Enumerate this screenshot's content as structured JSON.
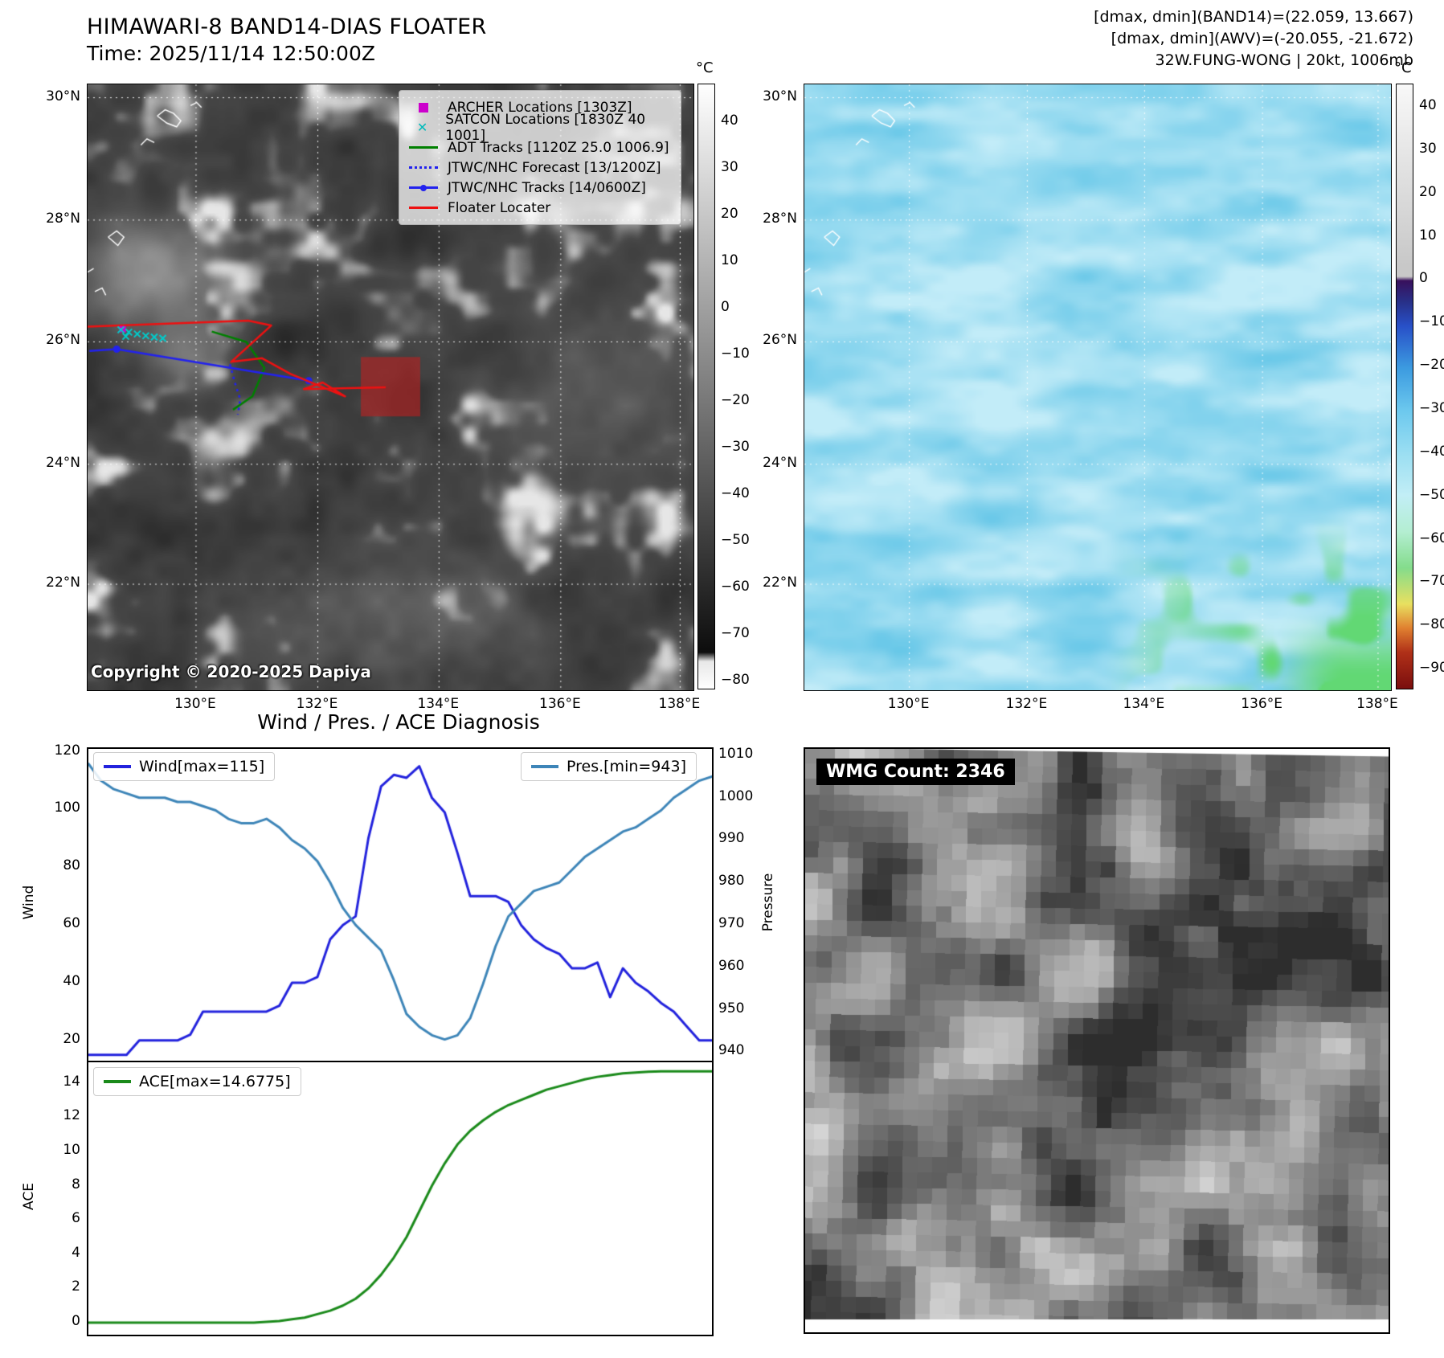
{
  "band14": {
    "title": "HIMAWARI-8 BAND14-DIAS FLOATER",
    "time_label": "Time: 2025/11/14 12:50:00Z",
    "copyright": "Copyright © 2020-2025 Dapiya",
    "lat_labels": [
      "30°N",
      "28°N",
      "26°N",
      "24°N",
      "22°N"
    ],
    "lon_labels": [
      "130°E",
      "132°E",
      "134°E",
      "136°E",
      "138°E"
    ],
    "colorbar": {
      "unit": "°C",
      "vmax": 48,
      "vmin": -82,
      "ticks": [
        40,
        30,
        20,
        10,
        0,
        -10,
        -20,
        -30,
        -40,
        -50,
        -60,
        -70,
        -80
      ],
      "stops": [
        [
          0,
          "#ffffff"
        ],
        [
          0.94,
          "#0d0d0d"
        ],
        [
          0.955,
          "#e8e8e8"
        ],
        [
          1,
          "#ffffff"
        ]
      ]
    },
    "legend": [
      {
        "label": "ARCHER Locations [1303Z]",
        "marker": "square",
        "color": "#cc00cc"
      },
      {
        "label": "SATCON Locations [1830Z 40 1001]",
        "marker": "x",
        "color": "#00bbbb"
      },
      {
        "label": "ADT Tracks [1120Z 25.0 1006.9]",
        "marker": "line",
        "color": "#008000"
      },
      {
        "label": "JTWC/NHC Forecast [13/1200Z]",
        "marker": "dotted",
        "color": "#2222ee"
      },
      {
        "label": "JTWC/NHC Tracks [14/0600Z]",
        "marker": "line-dot",
        "color": "#2222ee"
      },
      {
        "label": "Floater Locater",
        "marker": "line",
        "color": "#ee1111"
      }
    ]
  },
  "awv": {
    "header_lines": [
      "[dmax, dmin](BAND14)=(22.059, 13.667)",
      "[dmax, dmin](AWV)=(-20.055, -21.672)",
      "32W.FUNG-WONG | 20kt, 1006mb"
    ],
    "lat_labels": [
      "30°N",
      "28°N",
      "26°N",
      "24°N",
      "22°N"
    ],
    "lon_labels": [
      "130°E",
      "132°E",
      "134°E",
      "136°E",
      "138°E"
    ],
    "colorbar": {
      "unit": "°C",
      "vmax": 45,
      "vmin": -95,
      "ticks": [
        40,
        30,
        20,
        10,
        0,
        -10,
        -20,
        -30,
        -40,
        -50,
        -60,
        -70,
        -80,
        -90
      ],
      "stops": [
        [
          0,
          "#f8f8f8"
        ],
        [
          0.3,
          "#c8c8c8"
        ],
        [
          0.318,
          "#c8c8c8"
        ],
        [
          0.325,
          "#38105c"
        ],
        [
          0.36,
          "#283088"
        ],
        [
          0.4,
          "#2850c8"
        ],
        [
          0.47,
          "#3c9be0"
        ],
        [
          0.54,
          "#6cc8ee"
        ],
        [
          0.61,
          "#9adef2"
        ],
        [
          0.68,
          "#c2eef6"
        ],
        [
          0.74,
          "#b4eed2"
        ],
        [
          0.8,
          "#84dc8c"
        ],
        [
          0.86,
          "#e8e060"
        ],
        [
          0.9,
          "#e08030"
        ],
        [
          0.94,
          "#b03018"
        ],
        [
          1,
          "#7a0e0e"
        ]
      ]
    }
  },
  "wmg": {
    "label": "WMG Count: 2346"
  },
  "chart_data": [
    {
      "type": "line",
      "title": "Wind / Pres. / ACE Diagnosis",
      "grid": false,
      "legend_position": "top-left and top-right",
      "x_range": [
        0,
        1
      ],
      "left_axis": {
        "label": "Wind",
        "ylim": [
          13,
          121
        ],
        "ticks": [
          20,
          40,
          60,
          80,
          100,
          120
        ]
      },
      "right_axis": {
        "label": "Pressure",
        "ylim": [
          938,
          1011.5
        ],
        "ticks": [
          940,
          950,
          960,
          970,
          980,
          990,
          1000,
          1010
        ]
      },
      "series": [
        {
          "name": "Wind[max=115]",
          "axis": "left",
          "color": "#2222dd",
          "values": [
            15,
            15,
            15,
            15,
            20,
            20,
            20,
            20,
            22,
            30,
            30,
            30,
            30,
            30,
            30,
            32,
            40,
            40,
            42,
            55,
            60,
            63,
            90,
            108,
            112,
            111,
            115,
            104,
            99,
            85,
            70,
            70,
            70,
            68,
            60,
            55,
            52,
            50,
            45,
            45,
            47,
            35,
            45,
            40,
            37,
            33,
            30,
            25,
            20,
            20
          ]
        },
        {
          "name": "Pres.[min=943]",
          "axis": "right",
          "color": "#3d85b8",
          "values": [
            1008,
            1004,
            1002,
            1001,
            1000,
            1000,
            1000,
            999,
            999,
            998,
            997,
            995,
            994,
            994,
            995,
            993,
            990,
            988,
            985,
            980,
            974,
            970,
            967,
            964,
            957,
            949,
            946,
            944,
            943,
            944,
            948,
            956,
            965,
            972,
            975,
            978,
            979,
            980,
            983,
            986,
            988,
            990,
            992,
            993,
            995,
            997,
            1000,
            1002,
            1004,
            1005
          ]
        }
      ]
    },
    {
      "type": "line",
      "title": "",
      "grid": false,
      "x_range": [
        0,
        1
      ],
      "left_axis": {
        "label": "ACE",
        "ylim": [
          -0.7,
          15.2
        ],
        "ticks": [
          0,
          2,
          4,
          6,
          8,
          10,
          12,
          14
        ]
      },
      "series": [
        {
          "name": "ACE[max=14.6775]",
          "axis": "left",
          "color": "#1a8a1a",
          "values": [
            0,
            0,
            0,
            0,
            0,
            0,
            0,
            0,
            0,
            0,
            0,
            0,
            0,
            0,
            0.05,
            0.1,
            0.2,
            0.3,
            0.5,
            0.7,
            1.0,
            1.4,
            2.0,
            2.8,
            3.8,
            5.0,
            6.5,
            8.0,
            9.3,
            10.4,
            11.2,
            11.8,
            12.3,
            12.7,
            13.0,
            13.3,
            13.6,
            13.8,
            14.0,
            14.2,
            14.35,
            14.45,
            14.55,
            14.6,
            14.65,
            14.6775,
            14.6775,
            14.6775,
            14.6775,
            14.6775
          ]
        }
      ]
    }
  ]
}
